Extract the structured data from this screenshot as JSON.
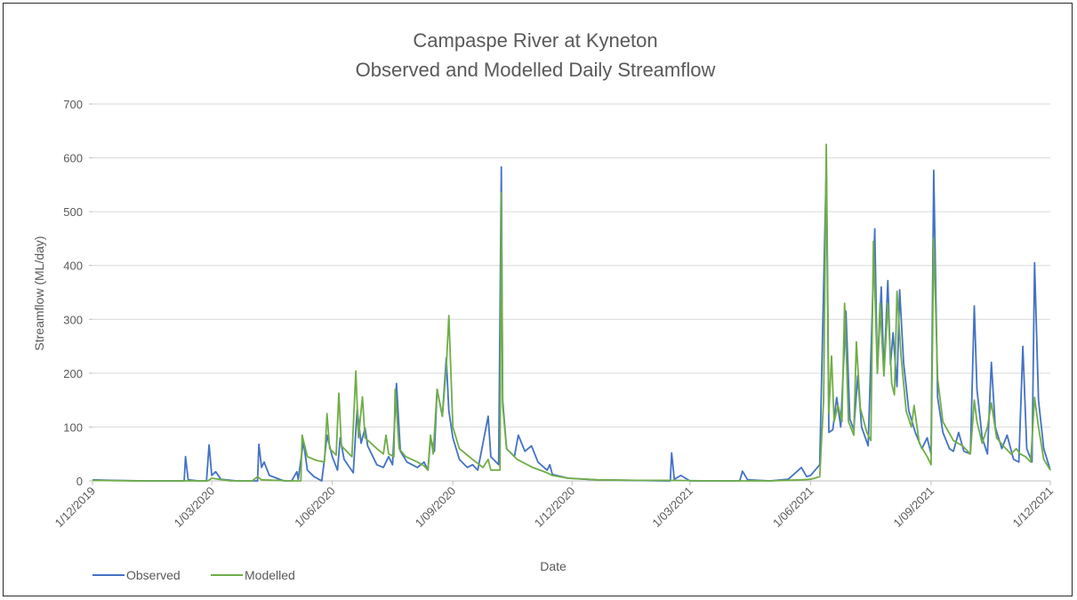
{
  "chart_data": {
    "type": "line",
    "title": "Campaspe River at Kyneton",
    "subtitle": "Observed and Modelled Daily Streamflow",
    "xlabel": "Date",
    "ylabel": "Streamflow (ML/day)",
    "ylim": [
      0,
      700
    ],
    "yticks": [
      0,
      100,
      200,
      300,
      400,
      500,
      600,
      700
    ],
    "xlim": [
      "2019-12-01",
      "2021-12-01"
    ],
    "xticks": [
      {
        "date": "2019-12-01",
        "label": "1/12/2019"
      },
      {
        "date": "2020-03-01",
        "label": "1/03/2020"
      },
      {
        "date": "2020-06-01",
        "label": "1/06/2020"
      },
      {
        "date": "2020-09-01",
        "label": "1/09/2020"
      },
      {
        "date": "2020-12-01",
        "label": "1/12/2020"
      },
      {
        "date": "2021-03-01",
        "label": "1/03/2021"
      },
      {
        "date": "2021-06-01",
        "label": "1/06/2021"
      },
      {
        "date": "2021-09-01",
        "label": "1/09/2021"
      },
      {
        "date": "2021-12-01",
        "label": "1/12/2021"
      }
    ],
    "grid": "horizontal",
    "legend_position": "bottom-left",
    "series": [
      {
        "name": "Observed",
        "color": "#4472c4",
        "points": [
          [
            "2019-12-01",
            2
          ],
          [
            "2019-12-15",
            1
          ],
          [
            "2020-01-10",
            0
          ],
          [
            "2020-02-01",
            0
          ],
          [
            "2020-02-09",
            0
          ],
          [
            "2020-02-10",
            45
          ],
          [
            "2020-02-12",
            2
          ],
          [
            "2020-02-20",
            0
          ],
          [
            "2020-02-26",
            0
          ],
          [
            "2020-02-28",
            67
          ],
          [
            "2020-03-01",
            10
          ],
          [
            "2020-03-04",
            17
          ],
          [
            "2020-03-08",
            3
          ],
          [
            "2020-03-20",
            0
          ],
          [
            "2020-04-05",
            0
          ],
          [
            "2020-04-06",
            68
          ],
          [
            "2020-04-08",
            25
          ],
          [
            "2020-04-10",
            35
          ],
          [
            "2020-04-14",
            10
          ],
          [
            "2020-04-25",
            0
          ],
          [
            "2020-05-01",
            0
          ],
          [
            "2020-05-05",
            17
          ],
          [
            "2020-05-06",
            3
          ],
          [
            "2020-05-10",
            73
          ],
          [
            "2020-05-13",
            20
          ],
          [
            "2020-05-18",
            8
          ],
          [
            "2020-05-24",
            0
          ],
          [
            "2020-05-26",
            40
          ],
          [
            "2020-05-28",
            85
          ],
          [
            "2020-06-01",
            45
          ],
          [
            "2020-06-05",
            20
          ],
          [
            "2020-06-07",
            80
          ],
          [
            "2020-06-10",
            40
          ],
          [
            "2020-06-17",
            15
          ],
          [
            "2020-06-20",
            133
          ],
          [
            "2020-06-23",
            70
          ],
          [
            "2020-06-26",
            98
          ],
          [
            "2020-06-28",
            65
          ],
          [
            "2020-07-05",
            30
          ],
          [
            "2020-07-10",
            25
          ],
          [
            "2020-07-14",
            45
          ],
          [
            "2020-07-17",
            30
          ],
          [
            "2020-07-20",
            181
          ],
          [
            "2020-07-23",
            55
          ],
          [
            "2020-07-28",
            35
          ],
          [
            "2020-08-05",
            25
          ],
          [
            "2020-08-10",
            35
          ],
          [
            "2020-08-13",
            20
          ],
          [
            "2020-08-15",
            80
          ],
          [
            "2020-08-18",
            55
          ],
          [
            "2020-08-20",
            170
          ],
          [
            "2020-08-24",
            120
          ],
          [
            "2020-08-27",
            228
          ],
          [
            "2020-08-29",
            130
          ],
          [
            "2020-09-01",
            80
          ],
          [
            "2020-09-06",
            40
          ],
          [
            "2020-09-12",
            25
          ],
          [
            "2020-09-16",
            30
          ],
          [
            "2020-09-20",
            20
          ],
          [
            "2020-09-28",
            120
          ],
          [
            "2020-09-30",
            45
          ],
          [
            "2020-10-06",
            30
          ],
          [
            "2020-10-08",
            583
          ],
          [
            "2020-10-09",
            150
          ],
          [
            "2020-10-12",
            60
          ],
          [
            "2020-10-18",
            45
          ],
          [
            "2020-10-21",
            85
          ],
          [
            "2020-10-26",
            55
          ],
          [
            "2020-10-31",
            65
          ],
          [
            "2020-11-05",
            35
          ],
          [
            "2020-11-12",
            20
          ],
          [
            "2020-11-14",
            30
          ],
          [
            "2020-11-16",
            12
          ],
          [
            "2020-11-28",
            5
          ],
          [
            "2020-12-20",
            2
          ],
          [
            "2021-01-15",
            1
          ],
          [
            "2021-02-10",
            0
          ],
          [
            "2021-02-14",
            0
          ],
          [
            "2021-02-15",
            52
          ],
          [
            "2021-02-17",
            3
          ],
          [
            "2021-02-22",
            10
          ],
          [
            "2021-03-01",
            0
          ],
          [
            "2021-04-01",
            0
          ],
          [
            "2021-04-08",
            0
          ],
          [
            "2021-04-10",
            18
          ],
          [
            "2021-04-14",
            2
          ],
          [
            "2021-05-01",
            0
          ],
          [
            "2021-05-15",
            3
          ],
          [
            "2021-05-25",
            25
          ],
          [
            "2021-05-29",
            8
          ],
          [
            "2021-06-01",
            10
          ],
          [
            "2021-06-08",
            30
          ],
          [
            "2021-06-13",
            585
          ],
          [
            "2021-06-15",
            90
          ],
          [
            "2021-06-18",
            95
          ],
          [
            "2021-06-21",
            155
          ],
          [
            "2021-06-24",
            100
          ],
          [
            "2021-06-28",
            315
          ],
          [
            "2021-07-01",
            115
          ],
          [
            "2021-07-04",
            95
          ],
          [
            "2021-07-07",
            195
          ],
          [
            "2021-07-10",
            100
          ],
          [
            "2021-07-15",
            65
          ],
          [
            "2021-07-20",
            468
          ],
          [
            "2021-07-22",
            200
          ],
          [
            "2021-07-25",
            360
          ],
          [
            "2021-07-27",
            200
          ],
          [
            "2021-07-30",
            372
          ],
          [
            "2021-08-01",
            215
          ],
          [
            "2021-08-03",
            275
          ],
          [
            "2021-08-06",
            175
          ],
          [
            "2021-08-08",
            355
          ],
          [
            "2021-08-11",
            220
          ],
          [
            "2021-08-15",
            130
          ],
          [
            "2021-08-20",
            90
          ],
          [
            "2021-08-25",
            60
          ],
          [
            "2021-08-29",
            80
          ],
          [
            "2021-09-01",
            50
          ],
          [
            "2021-09-03",
            577
          ],
          [
            "2021-09-06",
            155
          ],
          [
            "2021-09-10",
            90
          ],
          [
            "2021-09-15",
            60
          ],
          [
            "2021-09-18",
            55
          ],
          [
            "2021-09-22",
            90
          ],
          [
            "2021-09-26",
            55
          ],
          [
            "2021-10-01",
            50
          ],
          [
            "2021-10-04",
            325
          ],
          [
            "2021-10-06",
            170
          ],
          [
            "2021-10-10",
            80
          ],
          [
            "2021-10-14",
            50
          ],
          [
            "2021-10-17",
            220
          ],
          [
            "2021-10-20",
            100
          ],
          [
            "2021-10-25",
            60
          ],
          [
            "2021-10-29",
            85
          ],
          [
            "2021-11-03",
            40
          ],
          [
            "2021-11-07",
            35
          ],
          [
            "2021-11-10",
            250
          ],
          [
            "2021-11-13",
            60
          ],
          [
            "2021-11-17",
            35
          ],
          [
            "2021-11-19",
            405
          ],
          [
            "2021-11-22",
            150
          ],
          [
            "2021-11-26",
            60
          ],
          [
            "2021-12-01",
            20
          ]
        ]
      },
      {
        "name": "Modelled",
        "color": "#70ad47",
        "points": [
          [
            "2019-12-01",
            1
          ],
          [
            "2020-01-01",
            0
          ],
          [
            "2020-02-01",
            0
          ],
          [
            "2020-02-27",
            0
          ],
          [
            "2020-03-01",
            5
          ],
          [
            "2020-03-15",
            0
          ],
          [
            "2020-04-01",
            0
          ],
          [
            "2020-04-05",
            8
          ],
          [
            "2020-04-08",
            2
          ],
          [
            "2020-05-01",
            0
          ],
          [
            "2020-05-08",
            0
          ],
          [
            "2020-05-09",
            85
          ],
          [
            "2020-05-13",
            45
          ],
          [
            "2020-05-20",
            38
          ],
          [
            "2020-05-26",
            35
          ],
          [
            "2020-05-28",
            125
          ],
          [
            "2020-05-30",
            60
          ],
          [
            "2020-06-04",
            48
          ],
          [
            "2020-06-06",
            163
          ],
          [
            "2020-06-08",
            65
          ],
          [
            "2020-06-16",
            45
          ],
          [
            "2020-06-19",
            204
          ],
          [
            "2020-06-21",
            80
          ],
          [
            "2020-06-24",
            156
          ],
          [
            "2020-06-26",
            80
          ],
          [
            "2020-07-05",
            60
          ],
          [
            "2020-07-10",
            50
          ],
          [
            "2020-07-12",
            85
          ],
          [
            "2020-07-14",
            50
          ],
          [
            "2020-07-18",
            45
          ],
          [
            "2020-07-19",
            170
          ],
          [
            "2020-07-22",
            60
          ],
          [
            "2020-07-27",
            45
          ],
          [
            "2020-08-05",
            35
          ],
          [
            "2020-08-10",
            28
          ],
          [
            "2020-08-13",
            20
          ],
          [
            "2020-08-15",
            85
          ],
          [
            "2020-08-17",
            50
          ],
          [
            "2020-08-20",
            170
          ],
          [
            "2020-08-24",
            120
          ],
          [
            "2020-08-27",
            210
          ],
          [
            "2020-08-29",
            307
          ],
          [
            "2020-09-01",
            100
          ],
          [
            "2020-09-06",
            60
          ],
          [
            "2020-09-16",
            40
          ],
          [
            "2020-09-24",
            25
          ],
          [
            "2020-09-28",
            40
          ],
          [
            "2020-09-30",
            20
          ],
          [
            "2020-10-07",
            20
          ],
          [
            "2020-10-08",
            535
          ],
          [
            "2020-10-09",
            140
          ],
          [
            "2020-10-12",
            60
          ],
          [
            "2020-10-20",
            40
          ],
          [
            "2020-11-01",
            25
          ],
          [
            "2020-11-12",
            15
          ],
          [
            "2020-11-16",
            10
          ],
          [
            "2020-11-28",
            5
          ],
          [
            "2020-12-20",
            2
          ],
          [
            "2021-01-20",
            1
          ],
          [
            "2021-02-15",
            1
          ],
          [
            "2021-03-15",
            0
          ],
          [
            "2021-05-01",
            0
          ],
          [
            "2021-05-25",
            2
          ],
          [
            "2021-06-01",
            3
          ],
          [
            "2021-06-08",
            8
          ],
          [
            "2021-06-11",
            150
          ],
          [
            "2021-06-13",
            625
          ],
          [
            "2021-06-15",
            125
          ],
          [
            "2021-06-17",
            232
          ],
          [
            "2021-06-19",
            110
          ],
          [
            "2021-06-22",
            140
          ],
          [
            "2021-06-25",
            110
          ],
          [
            "2021-06-27",
            330
          ],
          [
            "2021-06-30",
            110
          ],
          [
            "2021-07-04",
            85
          ],
          [
            "2021-07-06",
            258
          ],
          [
            "2021-07-09",
            135
          ],
          [
            "2021-07-14",
            90
          ],
          [
            "2021-07-17",
            75
          ],
          [
            "2021-07-19",
            445
          ],
          [
            "2021-07-22",
            200
          ],
          [
            "2021-07-24",
            330
          ],
          [
            "2021-07-27",
            195
          ],
          [
            "2021-07-30",
            330
          ],
          [
            "2021-08-02",
            180
          ],
          [
            "2021-08-04",
            160
          ],
          [
            "2021-08-06",
            352
          ],
          [
            "2021-08-09",
            235
          ],
          [
            "2021-08-13",
            130
          ],
          [
            "2021-08-17",
            100
          ],
          [
            "2021-08-19",
            140
          ],
          [
            "2021-08-23",
            70
          ],
          [
            "2021-08-29",
            45
          ],
          [
            "2021-09-01",
            30
          ],
          [
            "2021-09-03",
            450
          ],
          [
            "2021-09-06",
            190
          ],
          [
            "2021-09-10",
            110
          ],
          [
            "2021-09-18",
            75
          ],
          [
            "2021-09-25",
            65
          ],
          [
            "2021-10-01",
            50
          ],
          [
            "2021-10-04",
            150
          ],
          [
            "2021-10-06",
            110
          ],
          [
            "2021-10-10",
            70
          ],
          [
            "2021-10-14",
            100
          ],
          [
            "2021-10-17",
            145
          ],
          [
            "2021-10-21",
            80
          ],
          [
            "2021-10-26",
            65
          ],
          [
            "2021-11-01",
            50
          ],
          [
            "2021-11-05",
            60
          ],
          [
            "2021-11-08",
            50
          ],
          [
            "2021-11-12",
            45
          ],
          [
            "2021-11-16",
            35
          ],
          [
            "2021-11-19",
            155
          ],
          [
            "2021-11-22",
            100
          ],
          [
            "2021-11-26",
            40
          ],
          [
            "2021-12-01",
            20
          ]
        ]
      }
    ]
  }
}
